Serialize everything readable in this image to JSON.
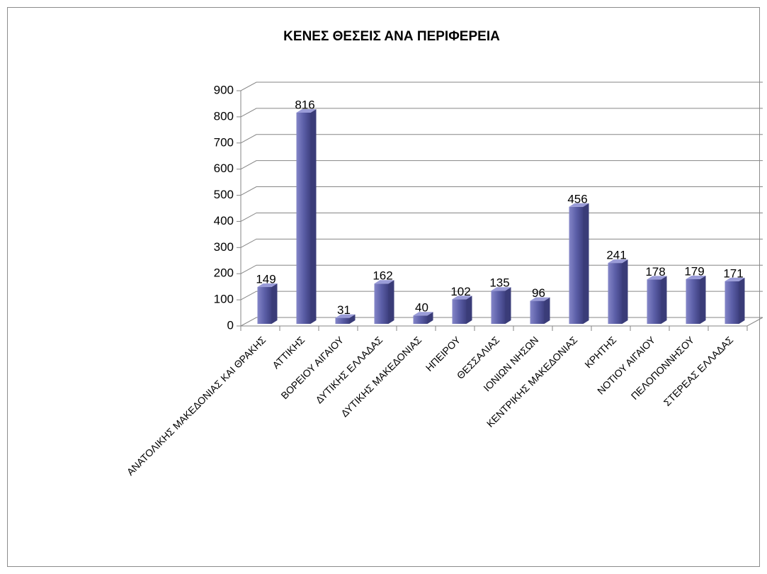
{
  "chart_data": {
    "type": "bar",
    "title": "ΚΕΝΕΣ ΘΕΣΕΙΣ ΑΝΑ ΠΕΡΙΦΕΡΕΙΑ",
    "categories": [
      "ΑΝΑΤΟΛΙΚΗΣ ΜΑΚΕΔΟΝΙΑΣ ΚΑΙ ΘΡΑΚΗΣ",
      "ΑΤΤΙΚΗΣ",
      "ΒΟΡΕΙΟΥ ΑΙΓΑΙΟΥ",
      "ΔΥΤΙΚΗΣ ΕΛΛΑΔΑΣ",
      "ΔΥΤΙΚΗΣ ΜΑΚΕΔΟΝΙΑΣ",
      "ΗΠΕΙΡΟΥ",
      "ΘΕΣΣΑΛΙΑΣ",
      "ΙΟΝΙΩΝ ΝΗΣΩΝ",
      "ΚΕΝΤΡΙΚΗΣ ΜΑΚΕΔΟΝΙΑΣ",
      "ΚΡΗΤΗΣ",
      "ΝΟΤΙΟΥ ΑΙΓΑΙΟΥ",
      "ΠΕΛΟΠΟΝΝΗΣΟΥ",
      "ΣΤΕΡΕΑΣ ΕΛΛΑΔΑΣ"
    ],
    "values": [
      149,
      816,
      31,
      162,
      40,
      102,
      135,
      96,
      456,
      241,
      178,
      179,
      171
    ],
    "color": "#5c5fa8",
    "ylim": [
      0,
      900
    ],
    "yticks": [
      0,
      100,
      200,
      300,
      400,
      500,
      600,
      700,
      800,
      900
    ],
    "grid": true
  }
}
